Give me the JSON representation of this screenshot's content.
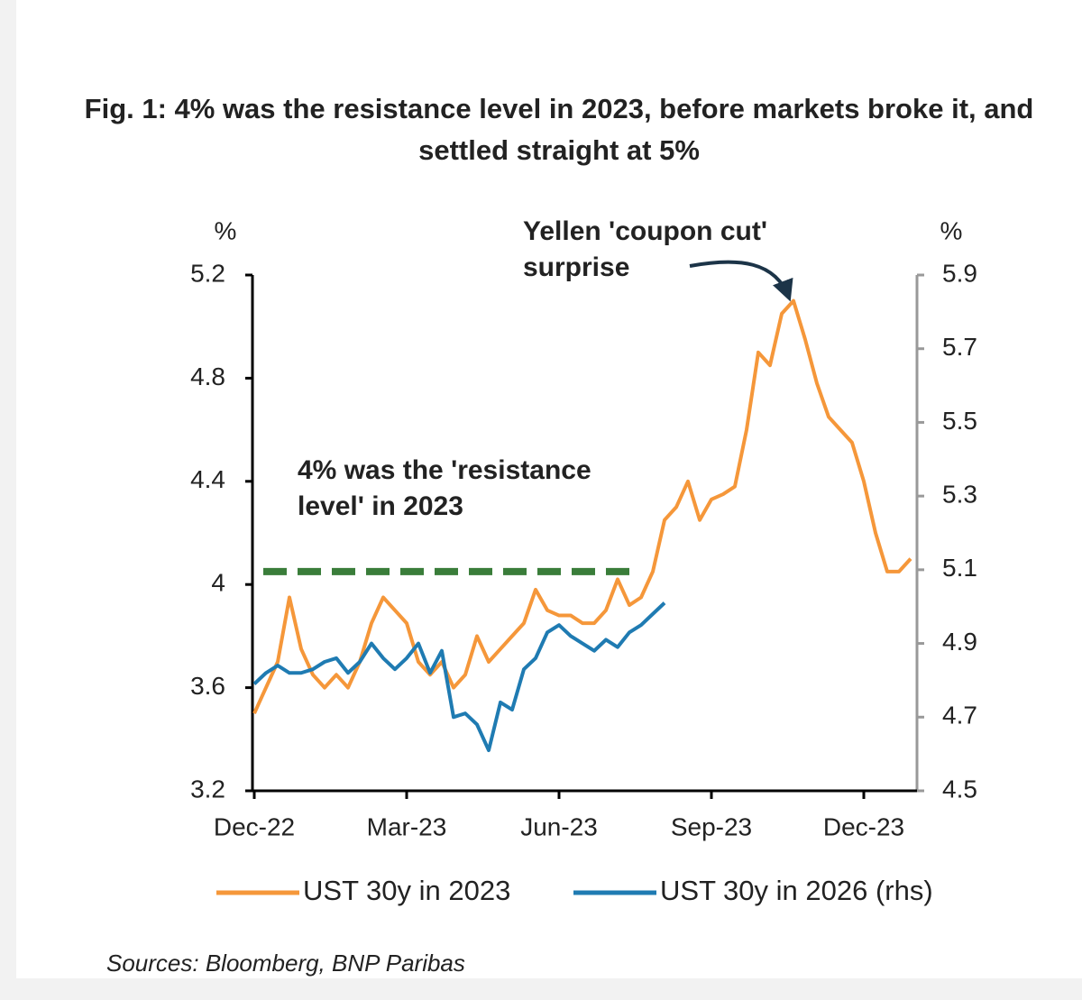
{
  "chart_data": {
    "type": "line",
    "title": "Fig. 1: 4% was the resistance level in 2023, before markets broke it, and settled straight at 5%",
    "y_label": "%",
    "y2_label": "%",
    "categories": [
      "Dec-22",
      null,
      null,
      null,
      null,
      null,
      null,
      null,
      null,
      null,
      null,
      null,
      null,
      "Mar-23",
      null,
      null,
      null,
      null,
      null,
      null,
      null,
      null,
      null,
      null,
      null,
      null,
      "Jun-23",
      null,
      null,
      null,
      null,
      null,
      null,
      null,
      null,
      null,
      null,
      null,
      null,
      "Sep-23",
      null,
      null,
      null,
      null,
      null,
      null,
      null,
      null,
      null,
      null,
      null,
      null,
      "Dec-23",
      null,
      null,
      null,
      null
    ],
    "series": [
      {
        "name": "UST 30y in 2023",
        "color": "#f5973a",
        "values": [
          3.5,
          3.6,
          3.7,
          3.95,
          3.75,
          3.65,
          3.6,
          3.65,
          3.6,
          3.7,
          3.85,
          3.95,
          3.9,
          3.85,
          3.7,
          3.65,
          3.7,
          3.6,
          3.65,
          3.8,
          3.7,
          3.75,
          3.8,
          3.85,
          3.98,
          3.9,
          3.88,
          3.88,
          3.85,
          3.85,
          3.9,
          4.02,
          3.92,
          3.95,
          4.05,
          4.25,
          4.3,
          4.4,
          4.25,
          4.33,
          4.35,
          4.38,
          4.6,
          4.9,
          4.85,
          5.05,
          5.1,
          4.95,
          4.78,
          4.65,
          4.6,
          4.55,
          4.4,
          4.2,
          4.05,
          4.05,
          4.1
        ]
      },
      {
        "name": "UST 30y in 2026 (rhs)",
        "color": "#1f7bb2",
        "axis": "y2",
        "values": [
          4.79,
          4.82,
          4.84,
          4.82,
          4.82,
          4.83,
          4.85,
          4.86,
          4.82,
          4.85,
          4.9,
          4.86,
          4.83,
          4.86,
          4.9,
          4.82,
          4.88,
          4.7,
          4.71,
          4.68,
          4.61,
          4.74,
          4.72,
          4.83,
          4.86,
          4.93,
          4.95,
          4.92,
          4.9,
          4.88,
          4.91,
          4.89,
          4.93,
          4.95,
          4.98,
          5.01,
          null,
          null,
          null,
          null,
          null,
          null,
          null,
          null,
          null,
          null,
          null,
          null,
          null,
          null,
          null,
          null,
          null,
          null,
          null,
          null,
          null
        ]
      }
    ],
    "ylim": [
      3.2,
      5.2
    ],
    "yticks": [
      3.2,
      3.6,
      4,
      4.4,
      4.8,
      5.2
    ],
    "y2lim": [
      4.5,
      5.9
    ],
    "y2ticks": [
      4.5,
      4.7,
      4.9,
      5.1,
      5.3,
      5.5,
      5.7,
      5.9
    ],
    "reference_line": {
      "value": 4.05,
      "color": "#3a7d3a"
    },
    "annotations": [
      {
        "lines": [
          "Yellen 'coupon cut'",
          "surprise"
        ],
        "color": "#3a7d3a"
      },
      {
        "lines": [
          "4% was the 'resistance",
          "level' in 2023"
        ],
        "color": "#3a7d3a"
      }
    ],
    "source": "Sources: Bloomberg, BNP Paribas"
  }
}
